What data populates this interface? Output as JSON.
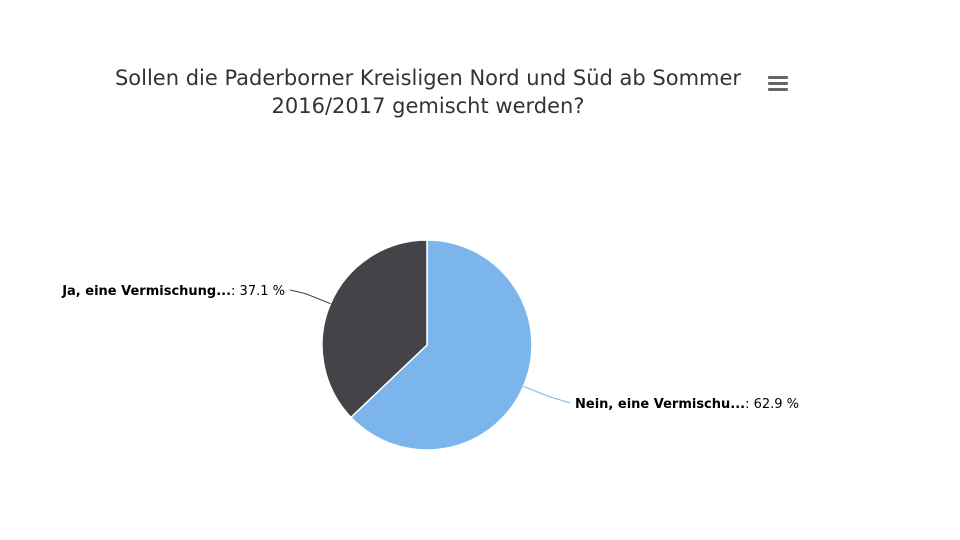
{
  "chart_data": {
    "type": "pie",
    "title": "Sollen die Paderborner Kreisligen Nord und Süd ab Sommer 2016/2017 gemischt werden?",
    "title_lines": [
      "Sollen die Paderborner Kreisligen Nord und Süd ab Sommer",
      "2016/2017 gemischt werden?"
    ],
    "slices": [
      {
        "label": "Nein, eine Vermischu...",
        "value": 62.9,
        "display": ": 62.9 %",
        "color": "#7cb5ec"
      },
      {
        "label": "Ja, eine Vermischung...",
        "value": 37.1,
        "display": ": 37.1 %",
        "color": "#434348"
      }
    ],
    "start_angle_deg": 0,
    "direction": "clockwise",
    "legend": "none"
  },
  "menu": {
    "icon": "hamburger-menu-icon"
  }
}
